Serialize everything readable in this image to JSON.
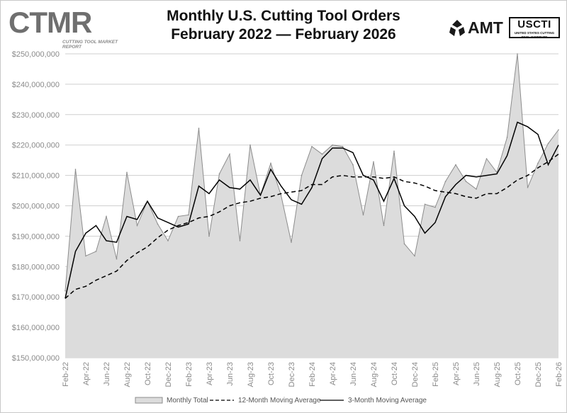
{
  "header": {
    "logo_text": "CTMR",
    "logo_tagline": "CUTTING TOOL MARKET REPORT",
    "title_line1": "Monthly U.S. Cutting Tool Orders",
    "title_line2": "February 2022 — February 2026",
    "amt_text": "AMT",
    "usc_text": "USCTI",
    "usc_small": "UNITED STATES CUTTING TOOL INSTITUTE"
  },
  "colors": {
    "area_fill": "#dcdcdc",
    "area_stroke": "#8c8c8c",
    "line": "#000000",
    "grid": "#cfcfcf"
  },
  "chart_data": {
    "type": "area",
    "title": "Monthly U.S. Cutting Tool Orders February 2022 — February 2026",
    "xlabel": "",
    "ylabel": "",
    "ylim": [
      150000000,
      250000000
    ],
    "yticks": [
      150000000,
      160000000,
      170000000,
      180000000,
      190000000,
      200000000,
      210000000,
      220000000,
      230000000,
      240000000,
      250000000
    ],
    "ytick_labels": [
      "$150,000,000",
      "$160,000,000",
      "$170,000,000",
      "$180,000,000",
      "$190,000,000",
      "$200,000,000",
      "$210,000,000",
      "$220,000,000",
      "$230,000,000",
      "$240,000,000",
      "$250,000,000"
    ],
    "x_labels": [
      "Feb-22",
      "Apr-22",
      "Jun-22",
      "Aug-22",
      "Oct-22",
      "Dec-22",
      "Feb-23",
      "Apr-23",
      "Jun-23",
      "Aug-23",
      "Oct-23",
      "Dec-23",
      "Feb-24",
      "Apr-24",
      "Jun-24",
      "Aug-24",
      "Oct-24",
      "Dec-24",
      "Feb-25",
      "Apr-25",
      "Jun-25",
      "Aug-25",
      "Oct-25",
      "Dec-25",
      "Feb-26"
    ],
    "grid": true,
    "legend_position": "bottom",
    "series": [
      {
        "name": "Monthly Total",
        "style": "area",
        "values": [
          172000000,
          212000000,
          183500000,
          185000000,
          196500000,
          182500000,
          211000000,
          193500000,
          201500000,
          194000000,
          188500000,
          196500000,
          197000000,
          225500000,
          190000000,
          210500000,
          217000000,
          188500000,
          220000000,
          203500000,
          214000000,
          203500000,
          188000000,
          210000000,
          219500000,
          217000000,
          220000000,
          219500000,
          213500000,
          197000000,
          214500000,
          193500000,
          218000000,
          187500000,
          183500000,
          200500000,
          199500000,
          208000000,
          213500000,
          208000000,
          205500000,
          215500000,
          211000000,
          222500000,
          250000000,
          206000000,
          214000000,
          220500000,
          225000000
        ]
      },
      {
        "name": "12-Month Moving Average",
        "style": "dashed",
        "values": [
          169500000,
          172500000,
          173500000,
          175500000,
          177000000,
          178500000,
          182000000,
          184500000,
          186500000,
          189500000,
          192000000,
          193500000,
          194500000,
          196000000,
          196500000,
          198000000,
          200000000,
          201000000,
          201500000,
          202500000,
          203000000,
          204000000,
          204500000,
          205000000,
          207000000,
          207000000,
          209500000,
          210000000,
          209500000,
          209500000,
          209500000,
          209000000,
          209500000,
          208000000,
          207500000,
          206500000,
          205000000,
          204500000,
          204000000,
          203000000,
          202500000,
          204000000,
          204000000,
          206000000,
          208500000,
          210000000,
          212500000,
          214500000,
          217000000
        ]
      },
      {
        "name": "3-Month Moving Average",
        "style": "solid",
        "values": [
          169500000,
          185000000,
          191000000,
          193500000,
          188500000,
          188000000,
          196500000,
          195500000,
          201500000,
          196000000,
          194500000,
          193000000,
          194000000,
          206500000,
          204000000,
          208500000,
          206000000,
          205500000,
          208500000,
          203500000,
          212000000,
          206500000,
          202000000,
          200500000,
          206000000,
          215500000,
          219000000,
          219000000,
          217500000,
          210000000,
          208500000,
          201500000,
          209000000,
          200000000,
          196500000,
          191000000,
          194500000,
          203000000,
          207000000,
          210000000,
          209500000,
          210000000,
          210500000,
          216500000,
          227500000,
          226000000,
          223500000,
          213500000,
          220000000
        ]
      }
    ]
  }
}
